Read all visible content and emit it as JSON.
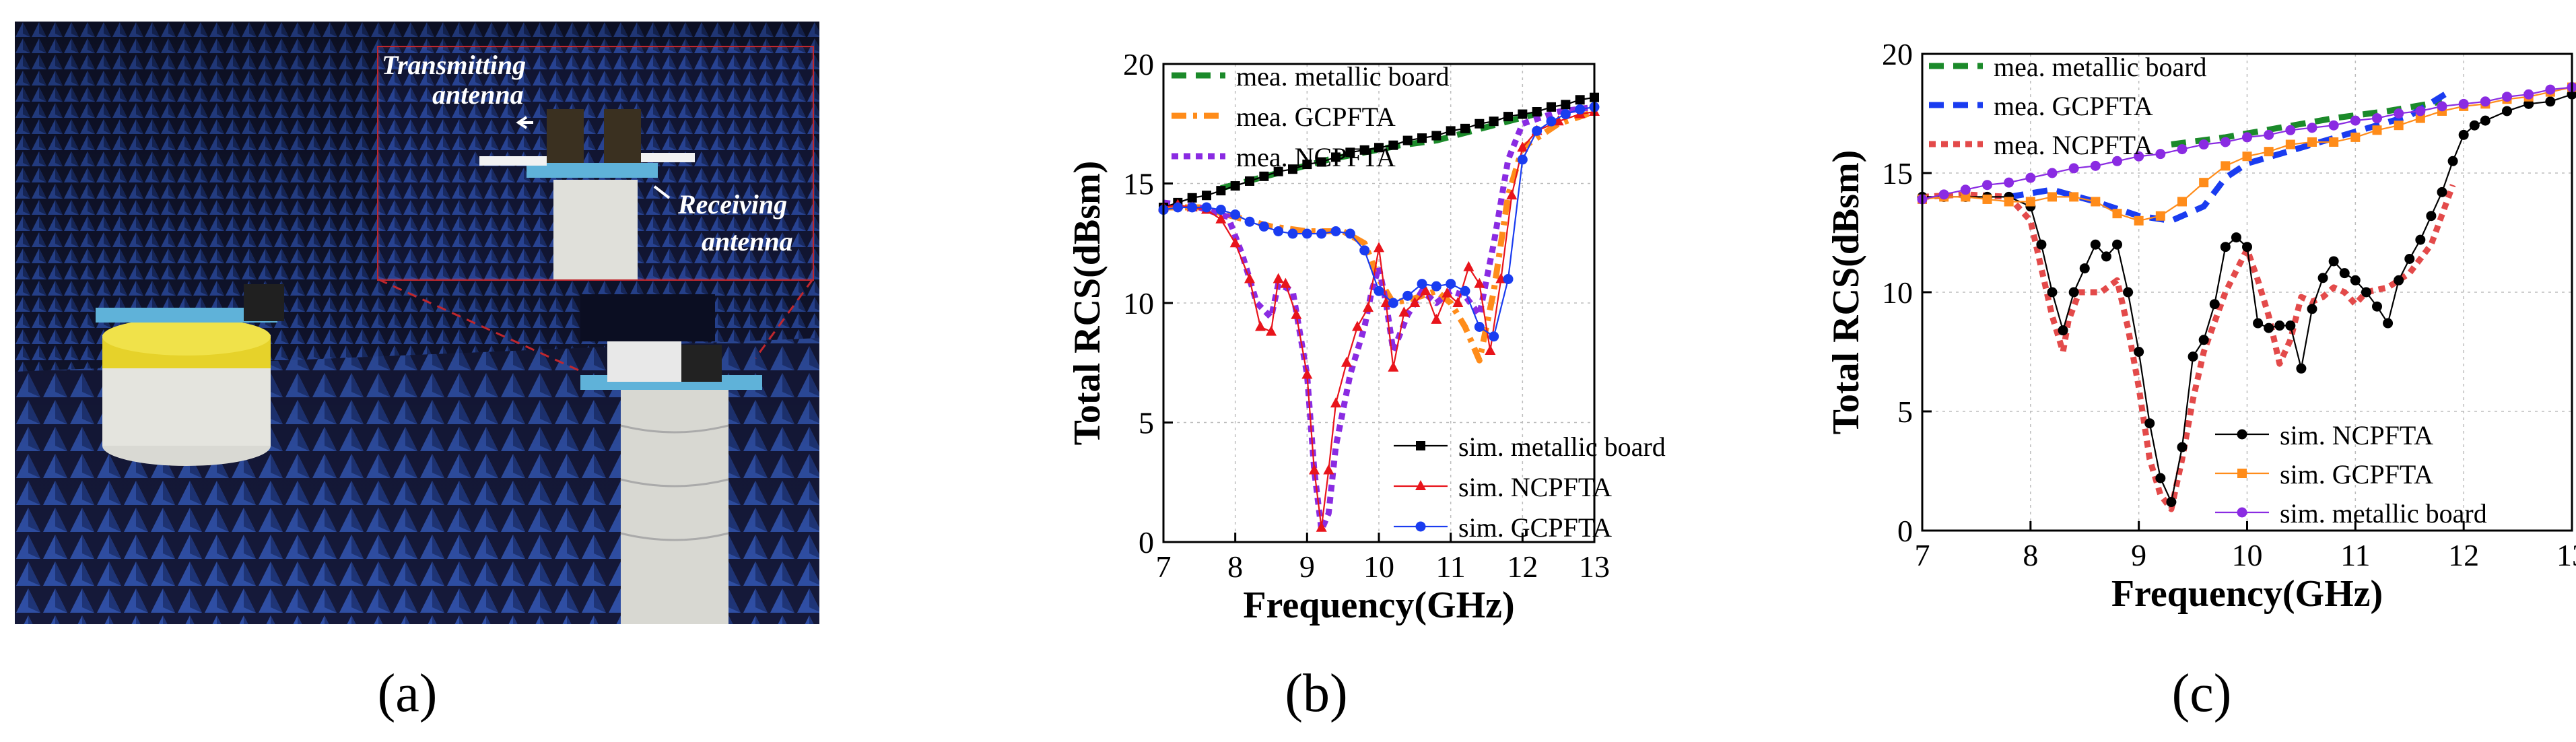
{
  "figure": {
    "panel_labels": [
      "(a)",
      "(b)",
      "(c)"
    ],
    "photo": {
      "callout_transmitting": [
        "Transmitting",
        "antenna"
      ],
      "callout_receiving": [
        "Receiving",
        "antenna"
      ],
      "colors": {
        "chamber": "#141a3c",
        "absorber": "#2e4fa8",
        "callout": "#c0272d"
      }
    }
  },
  "chart_data": [
    {
      "id": "chart-b",
      "type": "line",
      "xlabel": "Frequency(GHz)",
      "ylabel": "Total RCS(dBsm)",
      "xlim": [
        7,
        13
      ],
      "ylim": [
        0,
        20
      ],
      "xticks": [
        7,
        8,
        9,
        10,
        11,
        12,
        13
      ],
      "yticks": [
        0,
        5,
        10,
        15,
        20
      ],
      "grid": true,
      "legends": [
        {
          "position": "top-left",
          "entries": [
            "mea. metallic board",
            "mea. GCPFTA",
            "mea. NCPFTA"
          ]
        },
        {
          "position": "bottom-right",
          "entries": [
            "sim. metallic board",
            "sim. NCPFTA",
            "sim. GCPFTA"
          ]
        }
      ],
      "series": [
        {
          "name": "mea. metallic board",
          "style": "dashed",
          "color": "#1b8a2a",
          "x": [
            7.8,
            8.3,
            8.8,
            9.3,
            9.8,
            10.3,
            10.8,
            11.3,
            11.8,
            12.3
          ],
          "y": [
            14.8,
            15.2,
            15.6,
            16.0,
            16.3,
            16.6,
            16.8,
            17.2,
            17.6,
            18.0
          ]
        },
        {
          "name": "mea. GCPFTA",
          "style": "dashdot",
          "color": "#ff8c1a",
          "x": [
            7.0,
            7.5,
            8.0,
            8.5,
            9.0,
            9.5,
            9.8,
            10.0,
            10.2,
            10.5,
            10.8,
            11.0,
            11.2,
            11.4,
            11.6,
            11.8,
            12.0,
            12.5,
            13.0
          ],
          "y": [
            14.0,
            14.0,
            13.6,
            13.2,
            13.0,
            13.0,
            12.5,
            11.0,
            10.0,
            10.2,
            10.5,
            10.0,
            9.0,
            7.6,
            10.5,
            14.5,
            16.5,
            17.5,
            18.0
          ]
        },
        {
          "name": "mea. NCPFTA",
          "style": "dotted",
          "color": "#8a2be2",
          "x": [
            7.0,
            7.5,
            7.9,
            8.1,
            8.3,
            8.5,
            8.6,
            8.8,
            9.0,
            9.1,
            9.2,
            9.3,
            9.4,
            9.6,
            9.8,
            9.9,
            10.0,
            10.1,
            10.2,
            10.4,
            10.6,
            10.8,
            11.0,
            11.2,
            11.4,
            11.6,
            11.8,
            12.0,
            12.5,
            13.0
          ],
          "y": [
            14.2,
            14.0,
            13.6,
            12.0,
            10.0,
            9.4,
            10.8,
            10.5,
            7.0,
            3.0,
            0.5,
            1.2,
            4.0,
            7.0,
            9.0,
            10.5,
            11.5,
            10.0,
            8.0,
            9.5,
            10.5,
            10.0,
            10.5,
            10.3,
            9.5,
            12.5,
            16.0,
            17.5,
            18.0,
            18.2
          ]
        },
        {
          "name": "sim. metallic board",
          "style": "solid",
          "color": "#000000",
          "marker": "square",
          "x": [
            7.0,
            7.2,
            7.4,
            7.6,
            7.8,
            8.0,
            8.2,
            8.4,
            8.6,
            8.8,
            9.0,
            9.2,
            9.4,
            9.6,
            9.8,
            10.0,
            10.2,
            10.4,
            10.6,
            10.8,
            11.0,
            11.2,
            11.4,
            11.6,
            11.8,
            12.0,
            12.2,
            12.4,
            12.6,
            12.8,
            13.0
          ],
          "y": [
            14.0,
            14.2,
            14.4,
            14.5,
            14.7,
            14.9,
            15.1,
            15.3,
            15.5,
            15.6,
            15.8,
            15.9,
            16.1,
            16.3,
            16.4,
            16.5,
            16.6,
            16.8,
            16.9,
            17.0,
            17.2,
            17.3,
            17.5,
            17.6,
            17.8,
            17.9,
            18.0,
            18.2,
            18.3,
            18.5,
            18.6
          ]
        },
        {
          "name": "sim. NCPFTA",
          "style": "solid",
          "color": "#e8141b",
          "marker": "triangle",
          "x": [
            7.0,
            7.2,
            7.4,
            7.6,
            7.8,
            8.0,
            8.2,
            8.35,
            8.5,
            8.6,
            8.7,
            8.85,
            9.0,
            9.1,
            9.2,
            9.3,
            9.4,
            9.55,
            9.7,
            9.85,
            10.0,
            10.1,
            10.2,
            10.35,
            10.5,
            10.65,
            10.8,
            10.95,
            11.1,
            11.25,
            11.4,
            11.55,
            11.7,
            11.85,
            12.0,
            12.2,
            12.5,
            12.8,
            13.0
          ],
          "y": [
            14.0,
            14.1,
            14.0,
            13.9,
            13.5,
            12.5,
            11.0,
            9.0,
            8.8,
            11.0,
            10.8,
            9.5,
            7.0,
            3.0,
            0.6,
            3.0,
            5.8,
            7.5,
            9.0,
            9.8,
            12.3,
            10.0,
            7.3,
            9.6,
            10.0,
            10.5,
            9.3,
            10.4,
            10.0,
            11.5,
            10.8,
            8.0,
            11.0,
            14.5,
            16.5,
            17.2,
            17.6,
            17.9,
            18.0
          ]
        },
        {
          "name": "sim. GCPFTA",
          "style": "solid",
          "color": "#1a3cf0",
          "marker": "circle",
          "x": [
            7.0,
            7.2,
            7.4,
            7.6,
            7.8,
            8.0,
            8.2,
            8.4,
            8.6,
            8.8,
            9.0,
            9.2,
            9.4,
            9.6,
            9.8,
            10.0,
            10.2,
            10.4,
            10.6,
            10.8,
            11.0,
            11.2,
            11.4,
            11.6,
            11.8,
            12.0,
            12.2,
            12.4,
            12.6,
            12.8,
            13.0
          ],
          "y": [
            13.9,
            14.0,
            14.0,
            14.0,
            13.9,
            13.7,
            13.4,
            13.2,
            13.0,
            12.9,
            12.9,
            12.9,
            13.0,
            12.9,
            12.2,
            10.5,
            10.0,
            10.3,
            10.8,
            10.7,
            10.8,
            10.5,
            9.0,
            8.6,
            11.0,
            16.0,
            17.2,
            17.6,
            17.9,
            18.1,
            18.2
          ]
        }
      ]
    },
    {
      "id": "chart-c",
      "type": "line",
      "xlabel": "Frequency(GHz)",
      "ylabel": "Total RCS(dBsm)",
      "xlim": [
        7,
        13
      ],
      "ylim": [
        0,
        20
      ],
      "xticks": [
        7,
        8,
        9,
        10,
        11,
        12,
        13
      ],
      "yticks": [
        0,
        5,
        10,
        15,
        20
      ],
      "grid": true,
      "legends": [
        {
          "position": "top-left",
          "entries": [
            "mea. metallic board",
            "mea. GCPFTA",
            "mea. NCPFTA"
          ]
        },
        {
          "position": "bottom-right",
          "entries": [
            "sim. NCPFTA",
            "sim. GCPFTA",
            "sim. metallic board"
          ]
        }
      ],
      "series": [
        {
          "name": "mea. metallic board",
          "style": "dashed",
          "color": "#1b8a2a",
          "x": [
            9.3,
            9.8,
            10.3,
            10.8,
            11.3,
            11.8
          ],
          "y": [
            16.2,
            16.5,
            16.9,
            17.3,
            17.6,
            18.0
          ]
        },
        {
          "name": "mea. GCPFTA",
          "style": "dashed",
          "color": "#1a3cf0",
          "x": [
            7.8,
            8.2,
            8.6,
            9.0,
            9.3,
            9.6,
            9.8,
            10.0,
            10.3,
            10.6,
            10.9,
            11.2,
            11.5,
            11.9
          ],
          "y": [
            14.0,
            14.3,
            13.8,
            13.2,
            13.0,
            13.6,
            14.8,
            15.4,
            15.8,
            16.2,
            16.6,
            17.0,
            17.4,
            18.5
          ]
        },
        {
          "name": "mea. NCPFTA",
          "style": "dotted",
          "color": "#e34a4a",
          "x": [
            7.0,
            7.4,
            7.8,
            8.0,
            8.1,
            8.2,
            8.3,
            8.35,
            8.45,
            8.55,
            8.65,
            8.8,
            8.9,
            9.0,
            9.1,
            9.2,
            9.3,
            9.4,
            9.5,
            9.6,
            9.8,
            10.0,
            10.1,
            10.2,
            10.3,
            10.4,
            10.5,
            10.6,
            10.7,
            10.8,
            10.9,
            11.0,
            11.1,
            11.3,
            11.5,
            11.7,
            11.9
          ],
          "y": [
            14.0,
            14.1,
            14.0,
            13.0,
            11.0,
            9.0,
            7.5,
            8.8,
            10.0,
            10.0,
            10.0,
            10.5,
            8.5,
            6.0,
            3.0,
            1.5,
            0.9,
            3.0,
            5.5,
            7.5,
            10.0,
            11.8,
            10.5,
            9.0,
            7.0,
            8.0,
            9.8,
            9.6,
            9.8,
            10.2,
            10.0,
            9.5,
            10.0,
            10.2,
            10.8,
            12.0,
            14.5
          ]
        },
        {
          "name": "sim. NCPFTA",
          "style": "solid",
          "color": "#000000",
          "marker": "circle",
          "x": [
            7.0,
            7.2,
            7.4,
            7.6,
            7.8,
            8.0,
            8.1,
            8.2,
            8.3,
            8.4,
            8.5,
            8.6,
            8.7,
            8.8,
            8.9,
            9.0,
            9.1,
            9.2,
            9.3,
            9.4,
            9.5,
            9.6,
            9.7,
            9.8,
            9.9,
            10.0,
            10.1,
            10.2,
            10.3,
            10.4,
            10.5,
            10.6,
            10.7,
            10.8,
            10.9,
            11.0,
            11.1,
            11.2,
            11.3,
            11.4,
            11.5,
            11.6,
            11.7,
            11.8,
            11.9,
            12.0,
            12.1,
            12.2,
            12.4,
            12.6,
            12.8,
            13.0
          ],
          "y": [
            14.0,
            14.0,
            14.0,
            14.0,
            14.0,
            13.6,
            12.0,
            10.0,
            8.4,
            10.0,
            11.0,
            12.0,
            11.5,
            12.0,
            10.0,
            7.5,
            4.5,
            2.2,
            1.2,
            3.5,
            7.3,
            8.0,
            9.5,
            11.9,
            12.3,
            11.9,
            8.7,
            8.5,
            8.6,
            8.6,
            6.8,
            9.3,
            10.6,
            11.3,
            10.8,
            10.5,
            10.0,
            9.4,
            8.7,
            10.5,
            11.4,
            12.2,
            13.2,
            14.2,
            15.5,
            16.6,
            17.0,
            17.2,
            17.6,
            17.9,
            18.0,
            18.3
          ]
        },
        {
          "name": "sim. GCPFTA",
          "style": "solid",
          "color": "#ff8c1a",
          "marker": "square",
          "x": [
            7.0,
            7.2,
            7.4,
            7.6,
            7.8,
            8.0,
            8.2,
            8.4,
            8.6,
            8.8,
            9.0,
            9.2,
            9.4,
            9.6,
            9.8,
            10.0,
            10.2,
            10.4,
            10.6,
            10.8,
            11.0,
            11.2,
            11.4,
            11.6,
            11.8,
            12.0,
            12.2,
            12.4,
            12.6,
            12.8,
            13.0
          ],
          "y": [
            13.9,
            14.0,
            14.0,
            13.9,
            13.8,
            13.8,
            14.0,
            14.0,
            13.8,
            13.3,
            13.0,
            13.2,
            13.8,
            14.6,
            15.3,
            15.7,
            15.9,
            16.2,
            16.3,
            16.3,
            16.5,
            16.8,
            17.0,
            17.3,
            17.6,
            17.8,
            17.9,
            18.1,
            18.2,
            18.4,
            18.6
          ]
        },
        {
          "name": "sim. metallic board",
          "style": "solid",
          "color": "#8a2be2",
          "marker": "circle",
          "x": [
            7.0,
            7.2,
            7.4,
            7.6,
            7.8,
            8.0,
            8.2,
            8.4,
            8.6,
            8.8,
            9.0,
            9.2,
            9.4,
            9.6,
            9.8,
            10.0,
            10.2,
            10.4,
            10.6,
            10.8,
            11.0,
            11.2,
            11.4,
            11.6,
            11.8,
            12.0,
            12.2,
            12.4,
            12.6,
            12.8,
            13.0
          ],
          "y": [
            13.9,
            14.1,
            14.3,
            14.5,
            14.6,
            14.8,
            15.0,
            15.2,
            15.3,
            15.5,
            15.7,
            15.8,
            16.0,
            16.2,
            16.3,
            16.5,
            16.6,
            16.8,
            16.9,
            17.0,
            17.2,
            17.3,
            17.5,
            17.6,
            17.8,
            17.9,
            18.0,
            18.2,
            18.3,
            18.5,
            18.6
          ]
        }
      ]
    }
  ]
}
